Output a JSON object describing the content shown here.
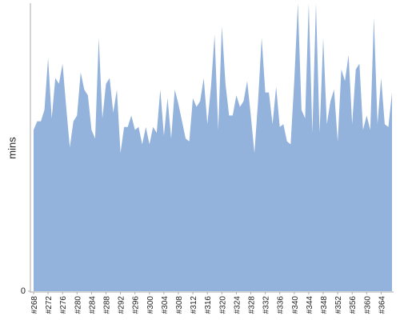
{
  "chart_data": {
    "type": "area",
    "y_label": "mins",
    "color": "#93b3dc",
    "categories": [
      "#268",
      null,
      null,
      null,
      "#272",
      null,
      null,
      null,
      "#276",
      null,
      null,
      null,
      "#280",
      null,
      null,
      null,
      "#284",
      null,
      null,
      null,
      "#288",
      null,
      null,
      null,
      "#292",
      null,
      null,
      null,
      "#296",
      null,
      null,
      null,
      "#300",
      null,
      null,
      null,
      "#304",
      null,
      null,
      null,
      "#308",
      null,
      null,
      null,
      "#312",
      null,
      null,
      null,
      "#316",
      null,
      null,
      null,
      "#320",
      null,
      null,
      null,
      "#324",
      null,
      null,
      null,
      "#328",
      null,
      null,
      null,
      "#332",
      null,
      null,
      null,
      "#336",
      null,
      null,
      null,
      "#340",
      null,
      null,
      null,
      "#344",
      null,
      null,
      null,
      "#348",
      null,
      null,
      null,
      "#352",
      null,
      null,
      null,
      "#356",
      null,
      null,
      null,
      "#360",
      null,
      null,
      null,
      "#364",
      null,
      null,
      null
    ],
    "values": [
      56,
      59,
      59,
      63,
      81,
      60,
      74,
      72,
      79,
      64,
      50,
      59,
      61,
      76,
      70,
      68,
      56,
      53,
      88,
      60,
      72,
      74,
      62,
      70,
      48,
      57,
      57,
      61,
      56,
      57,
      51,
      57,
      51,
      57,
      55,
      70,
      54,
      67,
      53,
      70,
      65,
      59,
      53,
      52,
      67,
      64,
      66,
      74,
      58,
      71,
      89,
      56,
      92,
      72,
      61,
      61,
      68,
      64,
      66,
      73,
      61,
      48,
      66,
      88,
      69,
      69,
      58,
      71,
      57,
      58,
      52,
      51,
      73,
      100,
      63,
      60,
      100,
      55,
      100,
      55,
      88,
      58,
      66,
      70,
      52,
      77,
      73,
      82,
      58,
      77,
      79,
      56,
      61,
      56,
      95,
      58,
      74,
      58,
      57,
      69
    ],
    "ylim": [
      0,
      100
    ],
    "yticks": [
      0
    ]
  }
}
